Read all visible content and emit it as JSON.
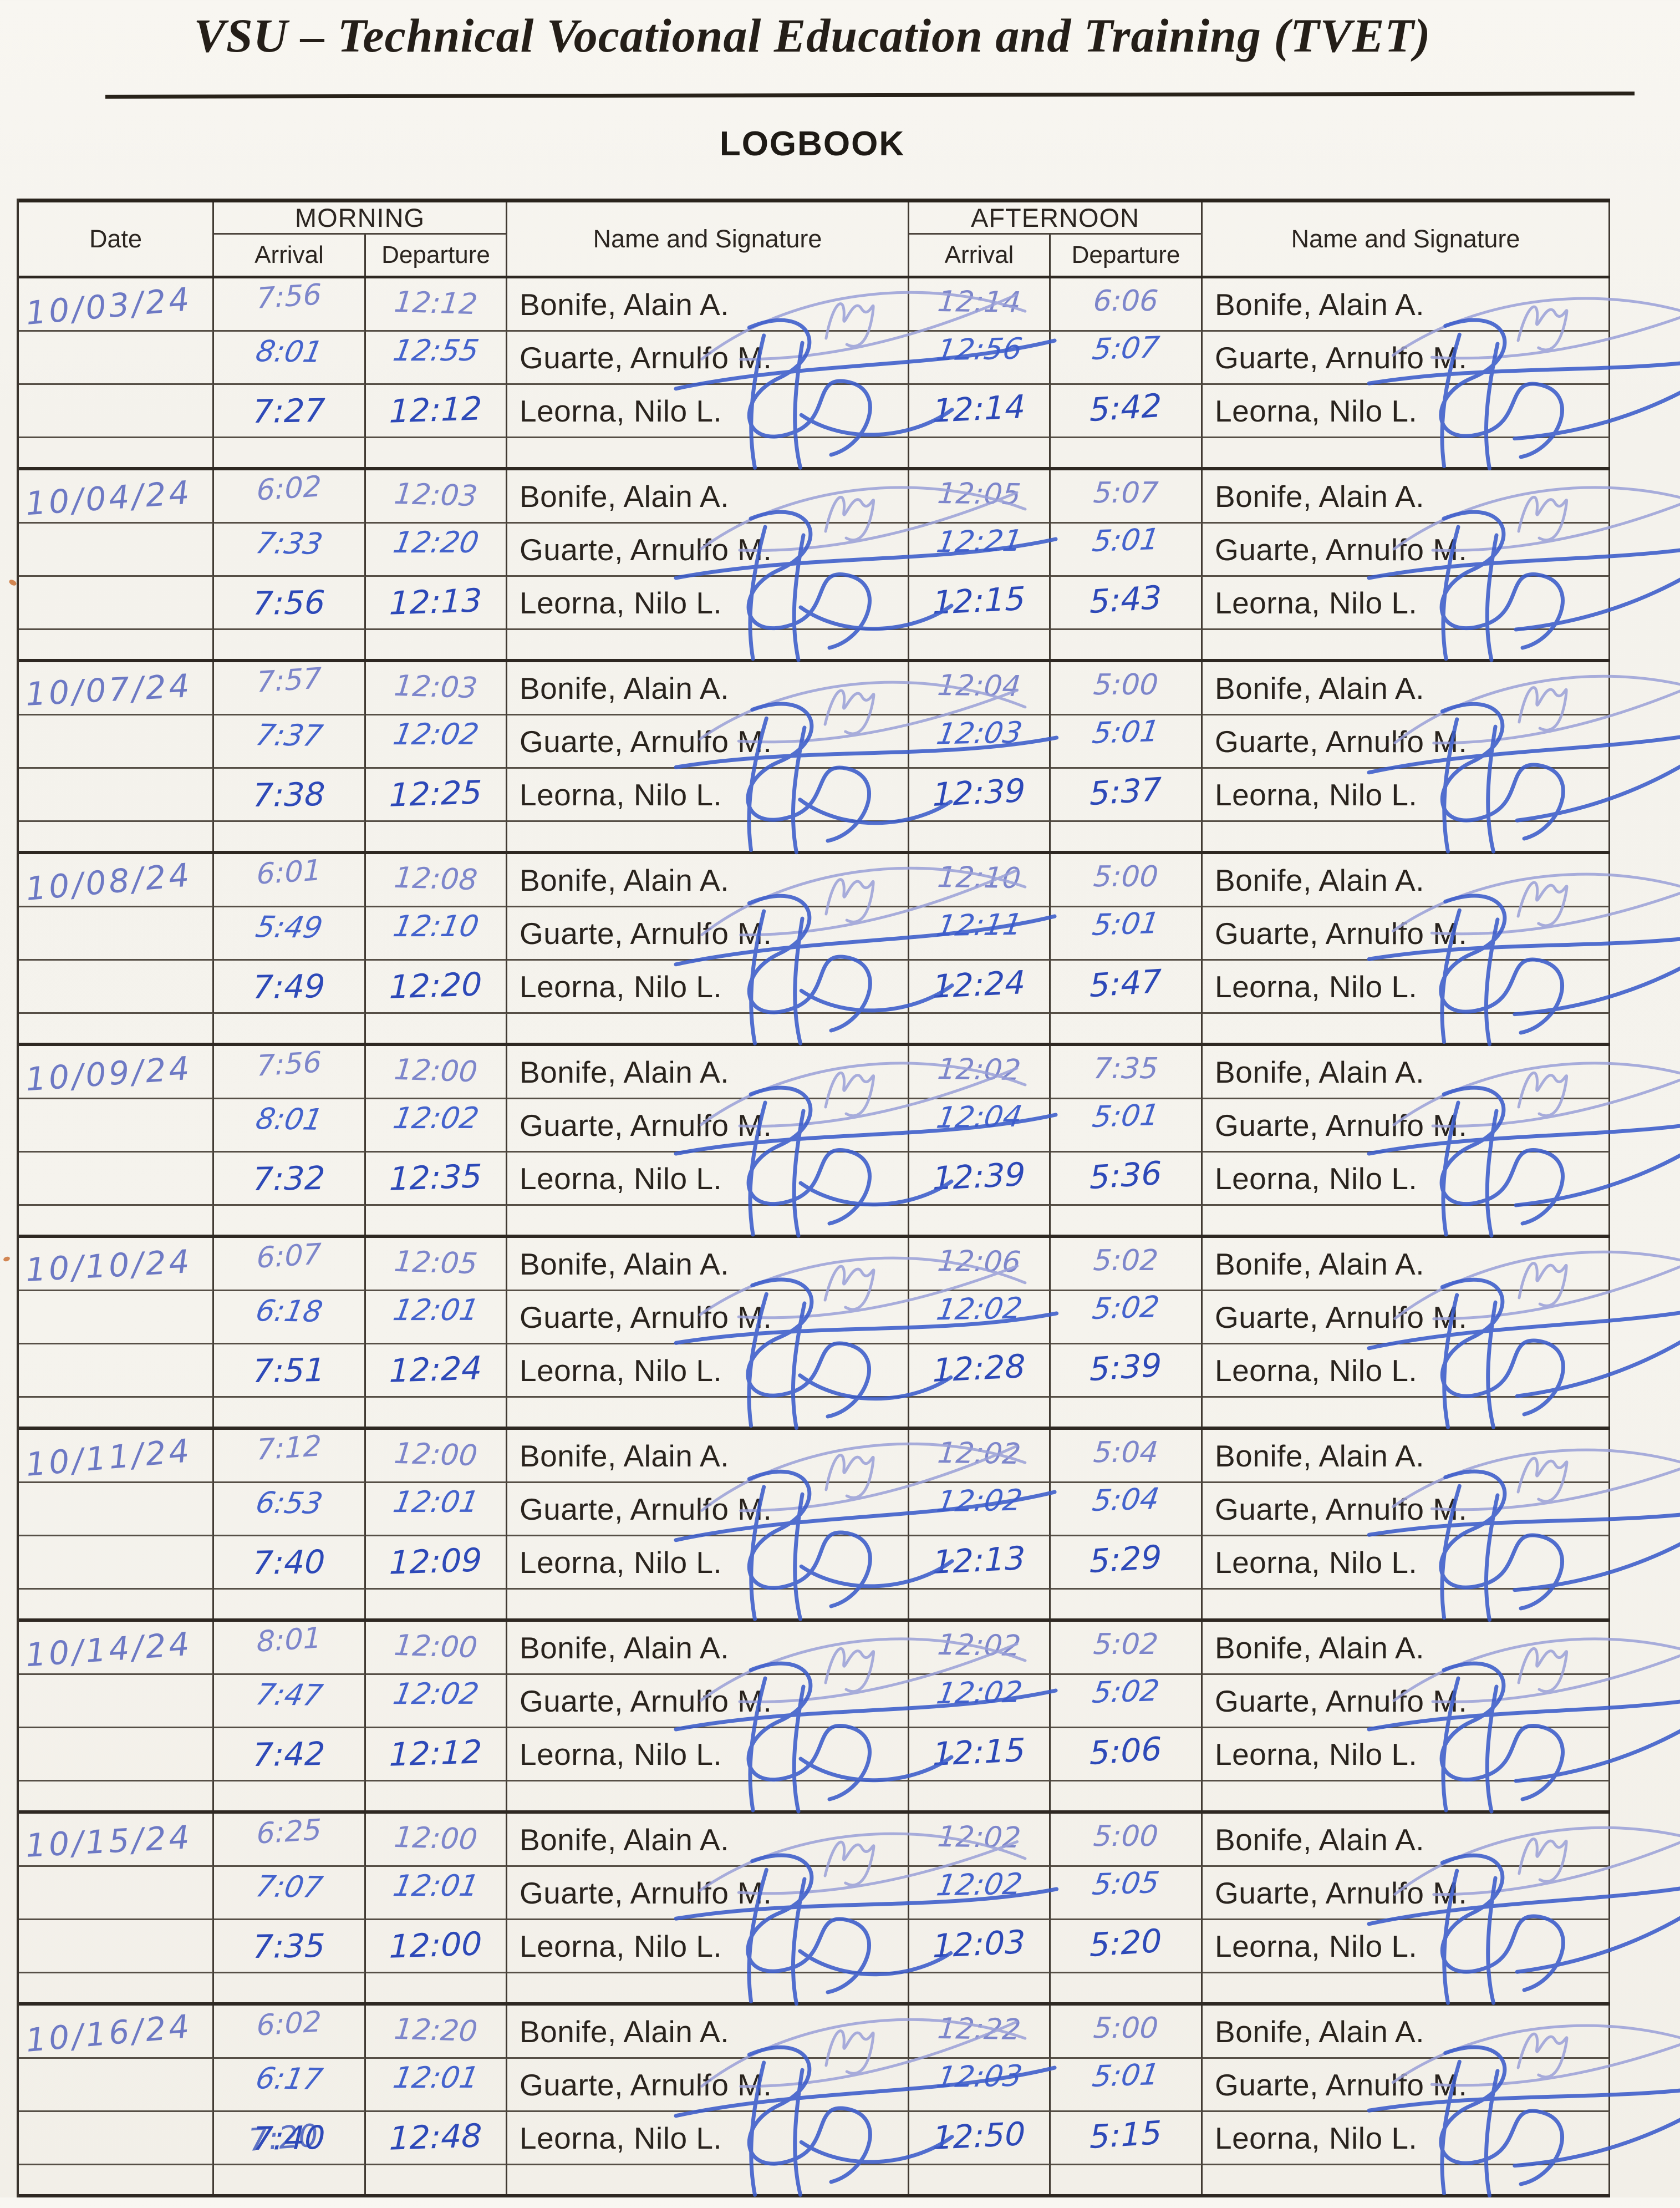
{
  "page": {
    "institution": "VSU – Technical Vocational Education and Training (TVET)",
    "title": "LOGBOOK"
  },
  "table": {
    "headers": {
      "date": "Date",
      "morning": "MORNING",
      "afternoon": "AFTERNOON",
      "arrival": "Arrival",
      "departure": "Departure",
      "name_signature": "Name and Signature"
    }
  },
  "colors": {
    "paper": "#f5f3ed",
    "table_line": "#413a32",
    "ink_date": "#6d79c4",
    "ink_bonife": "#7d86cb",
    "ink_guarte": "#4463cd",
    "ink_leorna": "#2d49b8",
    "ink_signature_light": "#9aa0d8",
    "ink_signature_strong": "#3b5ccb"
  },
  "entries": [
    {
      "date": "10/03/24",
      "rows": [
        {
          "name": "Bonife, Alain A.",
          "morning_arrival": "7:56",
          "morning_departure": "12:12",
          "afternoon_arrival": "12:14",
          "afternoon_departure": "6:06"
        },
        {
          "name": "Guarte, Arnulfo M.",
          "morning_arrival": "8:01",
          "morning_departure": "12:55",
          "afternoon_arrival": "12:56",
          "afternoon_departure": "5:07"
        },
        {
          "name": "Leorna, Nilo L.",
          "morning_arrival": "7:27",
          "morning_departure": "12:12",
          "afternoon_arrival": "12:14",
          "afternoon_departure": "5:42"
        }
      ]
    },
    {
      "date": "10/04/24",
      "rows": [
        {
          "name": "Bonife, Alain A.",
          "morning_arrival": "6:02",
          "morning_departure": "12:03",
          "afternoon_arrival": "12:05",
          "afternoon_departure": "5:07"
        },
        {
          "name": "Guarte, Arnulfo M.",
          "morning_arrival": "7:33",
          "morning_departure": "12:20",
          "afternoon_arrival": "12:21",
          "afternoon_departure": "5:01"
        },
        {
          "name": "Leorna, Nilo L.",
          "morning_arrival": "7:56",
          "morning_departure": "12:13",
          "afternoon_arrival": "12:15",
          "afternoon_departure": "5:43"
        }
      ]
    },
    {
      "date": "10/07/24",
      "rows": [
        {
          "name": "Bonife, Alain A.",
          "morning_arrival": "7:57",
          "morning_departure": "12:03",
          "afternoon_arrival": "12:04",
          "afternoon_departure": "5:00"
        },
        {
          "name": "Guarte, Arnulfo M.",
          "morning_arrival": "7:37",
          "morning_departure": "12:02",
          "afternoon_arrival": "12:03",
          "afternoon_departure": "5:01"
        },
        {
          "name": "Leorna, Nilo L.",
          "morning_arrival": "7:38",
          "morning_departure": "12:25",
          "afternoon_arrival": "12:39",
          "afternoon_departure": "5:37"
        }
      ]
    },
    {
      "date": "10/08/24",
      "rows": [
        {
          "name": "Bonife, Alain A.",
          "morning_arrival": "6:01",
          "morning_departure": "12:08",
          "afternoon_arrival": "12:10",
          "afternoon_departure": "5:00"
        },
        {
          "name": "Guarte, Arnulfo M.",
          "morning_arrival": "5:49",
          "morning_departure": "12:10",
          "afternoon_arrival": "12:11",
          "afternoon_departure": "5:01"
        },
        {
          "name": "Leorna, Nilo L.",
          "morning_arrival": "7:49",
          "morning_departure": "12:20",
          "afternoon_arrival": "12:24",
          "afternoon_departure": "5:47"
        }
      ]
    },
    {
      "date": "10/09/24",
      "rows": [
        {
          "name": "Bonife, Alain A.",
          "morning_arrival": "7:56",
          "morning_departure": "12:00",
          "afternoon_arrival": "12:02",
          "afternoon_departure": "7:35"
        },
        {
          "name": "Guarte, Arnulfo M.",
          "morning_arrival": "8:01",
          "morning_departure": "12:02",
          "afternoon_arrival": "12:04",
          "afternoon_departure": "5:01"
        },
        {
          "name": "Leorna, Nilo L.",
          "morning_arrival": "7:32",
          "morning_departure": "12:35",
          "afternoon_arrival": "12:39",
          "afternoon_departure": "5:36"
        }
      ]
    },
    {
      "date": "10/10/24",
      "rows": [
        {
          "name": "Bonife, Alain A.",
          "morning_arrival": "6:07",
          "morning_departure": "12:05",
          "afternoon_arrival": "12:06",
          "afternoon_departure": "5:02"
        },
        {
          "name": "Guarte, Arnulfo M.",
          "morning_arrival": "6:18",
          "morning_departure": "12:01",
          "afternoon_arrival": "12:02",
          "afternoon_departure": "5:02"
        },
        {
          "name": "Leorna, Nilo L.",
          "morning_arrival": "7:51",
          "morning_departure": "12:24",
          "afternoon_arrival": "12:28",
          "afternoon_departure": "5:39"
        }
      ]
    },
    {
      "date": "10/11/24",
      "rows": [
        {
          "name": "Bonife, Alain A.",
          "morning_arrival": "7:12",
          "morning_departure": "12:00",
          "afternoon_arrival": "12:02",
          "afternoon_departure": "5:04"
        },
        {
          "name": "Guarte, Arnulfo M.",
          "morning_arrival": "6:53",
          "morning_departure": "12:01",
          "afternoon_arrival": "12:02",
          "afternoon_departure": "5:04"
        },
        {
          "name": "Leorna, Nilo L.",
          "morning_arrival": "7:40",
          "morning_departure": "12:09",
          "afternoon_arrival": "12:13",
          "afternoon_departure": "5:29"
        }
      ]
    },
    {
      "date": "10/14/24",
      "rows": [
        {
          "name": "Bonife, Alain A.",
          "morning_arrival": "8:01",
          "morning_departure": "12:00",
          "afternoon_arrival": "12:02",
          "afternoon_departure": "5:02"
        },
        {
          "name": "Guarte, Arnulfo M.",
          "morning_arrival": "7:47",
          "morning_departure": "12:02",
          "afternoon_arrival": "12:02",
          "afternoon_departure": "5:02"
        },
        {
          "name": "Leorna, Nilo L.",
          "morning_arrival": "7:42",
          "morning_departure": "12:12",
          "afternoon_arrival": "12:15",
          "afternoon_departure": "5:06"
        }
      ]
    },
    {
      "date": "10/15/24",
      "rows": [
        {
          "name": "Bonife, Alain A.",
          "morning_arrival": "6:25",
          "morning_departure": "12:00",
          "afternoon_arrival": "12:02",
          "afternoon_departure": "5:00"
        },
        {
          "name": "Guarte, Arnulfo M.",
          "morning_arrival": "7:07",
          "morning_departure": "12:01",
          "afternoon_arrival": "12:02",
          "afternoon_departure": "5:05"
        },
        {
          "name": "Leorna, Nilo L.",
          "morning_arrival": "7:35",
          "morning_departure": "12:00",
          "afternoon_arrival": "12:03",
          "afternoon_departure": "5:20"
        }
      ]
    },
    {
      "date": "10/16/24",
      "rows": [
        {
          "name": "Bonife, Alain A.",
          "morning_arrival": "6:02",
          "morning_departure": "12:20",
          "afternoon_arrival": "12:22",
          "afternoon_departure": "5:00"
        },
        {
          "name": "Guarte, Arnulfo M.",
          "morning_arrival": "6:17",
          "morning_departure": "12:01",
          "afternoon_arrival": "12:03",
          "afternoon_departure": "5:01"
        },
        {
          "name": "Leorna, Nilo L.",
          "morning_arrival": "7:40",
          "overwrite": "7:20",
          "morning_departure": "12:48",
          "afternoon_arrival": "12:50",
          "afternoon_departure": "5:15"
        }
      ]
    }
  ]
}
